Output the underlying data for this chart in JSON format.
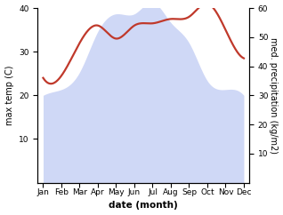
{
  "months": [
    "Jan",
    "Feb",
    "Mar",
    "Apr",
    "May",
    "Jun",
    "Jul",
    "Aug",
    "Sep",
    "Oct",
    "Nov",
    "Dec"
  ],
  "precip_vals": [
    30,
    32,
    38,
    52,
    58,
    58,
    62,
    55,
    48,
    35,
    32,
    30
  ],
  "temp_vals": [
    24,
    24.5,
    32,
    36,
    33,
    36,
    36.5,
    37.5,
    38,
    41,
    35,
    28.5
  ],
  "ylim_left": [
    0,
    40
  ],
  "ylim_right": [
    0,
    60
  ],
  "ylabel_left": "max temp (C)",
  "ylabel_right": "med. precipitation (kg/m2)",
  "xlabel": "date (month)",
  "fill_color": "#b0bef0",
  "fill_alpha": 0.6,
  "line_color": "#c0392b",
  "line_width": 1.6,
  "tick_fontsize": 6.5,
  "label_fontsize": 7,
  "xlabel_fontsize": 7.5
}
